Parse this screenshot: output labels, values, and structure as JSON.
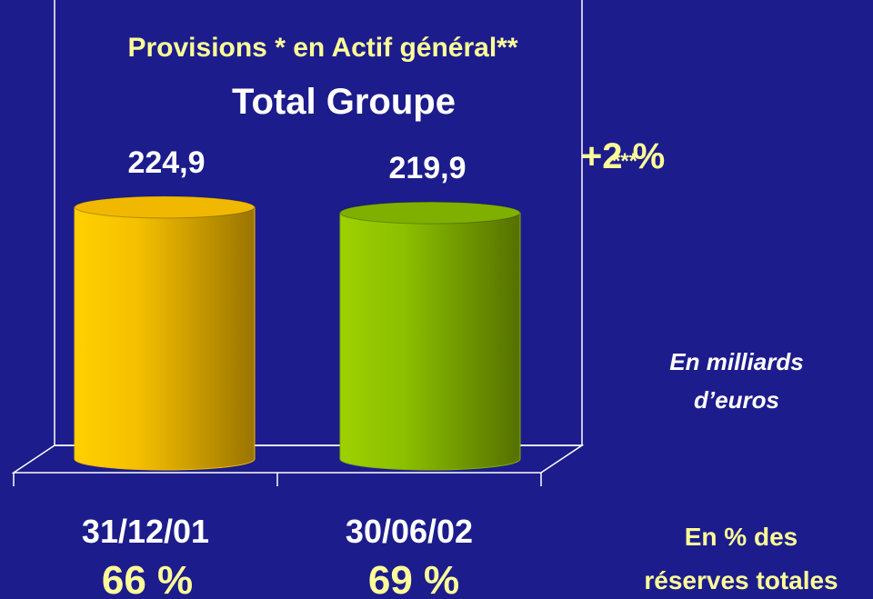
{
  "chart_data": {
    "type": "bar",
    "title": "Provisions * en Actif général**",
    "subtitle": "Total Groupe",
    "categories": [
      "31/12/01",
      "30/06/02"
    ],
    "values": [
      224.9,
      219.9
    ],
    "value_labels": [
      "224,9",
      "219,9"
    ],
    "colors": [
      "#f0b800",
      "#7fb000"
    ],
    "change": {
      "label": "+2 %",
      "note": "***"
    },
    "unit_lines": [
      "En milliards",
      "d’euros"
    ],
    "reserve_share_labels": [
      "66 %",
      "69 %"
    ],
    "reserve_share_title_lines": [
      "En % des",
      "réserves totales"
    ]
  }
}
